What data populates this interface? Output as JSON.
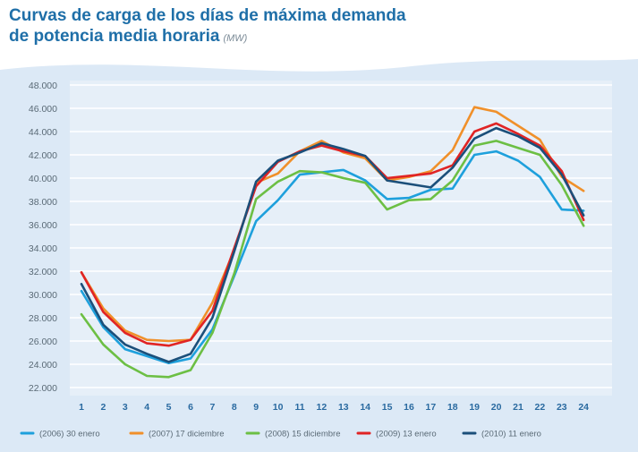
{
  "title_line1": "Curvas de carga de los días de máxima demanda",
  "title_line2": "de potencia media horaria",
  "title_unit": "(MW)",
  "chart_data": {
    "type": "line",
    "title": "Curvas de carga de los días de máxima demanda de potencia media horaria (MW)",
    "xlabel": "",
    "ylabel": "",
    "categories": [
      "1",
      "2",
      "3",
      "4",
      "5",
      "6",
      "7",
      "8",
      "9",
      "10",
      "11",
      "12",
      "13",
      "14",
      "15",
      "16",
      "17",
      "18",
      "19",
      "20",
      "21",
      "22",
      "23",
      "24"
    ],
    "y_ticks": [
      "22.000",
      "24.000",
      "26.000",
      "28.000",
      "30.000",
      "32.000",
      "34.000",
      "36.000",
      "38.000",
      "40.000",
      "42.000",
      "44.000",
      "46.000",
      "48.000"
    ],
    "ylim": [
      21000,
      49000
    ],
    "grid": true,
    "legend_position": "bottom",
    "series": [
      {
        "name": "(2006) 30 enero",
        "color": "#1ea0dc",
        "values": [
          30300,
          27200,
          25300,
          24700,
          24100,
          24500,
          27000,
          31600,
          36300,
          38100,
          40300,
          40500,
          40700,
          39800,
          38200,
          38300,
          39000,
          39100,
          42000,
          42300,
          41500,
          40100,
          37300,
          37200
        ]
      },
      {
        "name": "(2007) 17 diciembre",
        "color": "#f0902a",
        "values": [
          31900,
          28800,
          26900,
          26100,
          26000,
          26100,
          29300,
          33800,
          39600,
          40400,
          42300,
          43200,
          42200,
          41700,
          39800,
          40100,
          40600,
          42400,
          46100,
          45700,
          44500,
          43300,
          40100,
          38900
        ]
      },
      {
        "name": "(2008) 15 diciembre",
        "color": "#6cbf44",
        "values": [
          28300,
          25700,
          24000,
          23000,
          22900,
          23500,
          26700,
          31800,
          38200,
          39700,
          40600,
          40500,
          40000,
          39600,
          37300,
          38100,
          38200,
          39800,
          42800,
          43200,
          42600,
          42000,
          39400,
          35900
        ]
      },
      {
        "name": "(2009) 13 enero",
        "color": "#e02424",
        "values": [
          31900,
          28500,
          26700,
          25800,
          25600,
          26100,
          28600,
          34000,
          39300,
          41400,
          42300,
          42800,
          42300,
          41900,
          40000,
          40200,
          40400,
          41100,
          44000,
          44700,
          43800,
          42800,
          40600,
          36400
        ]
      },
      {
        "name": "(2010) 11 enero",
        "color": "#1b4f7a",
        "values": [
          30900,
          27400,
          25700,
          24900,
          24200,
          24900,
          28000,
          33700,
          39700,
          41500,
          42200,
          43000,
          42500,
          41900,
          39800,
          39500,
          39200,
          40900,
          43400,
          44300,
          43600,
          42600,
          40300,
          36800
        ]
      }
    ]
  }
}
